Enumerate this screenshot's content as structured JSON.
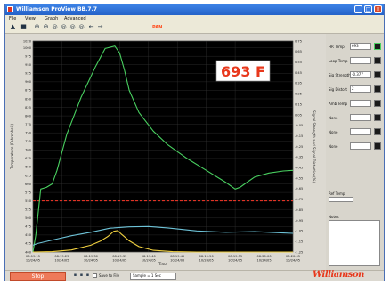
{
  "window": {
    "title": "Williamson ProView BB.7.7",
    "minimize_glyph": "_",
    "maximize_glyph": "□",
    "close_glyph": "×"
  },
  "menu": [
    "File",
    "View",
    "Graph",
    "Advanced"
  ],
  "toolbar": {
    "icons": [
      "print-icon",
      "disk-icon",
      "zoom-in-icon",
      "zoom-out-icon",
      "zoom-box-icon",
      "zoom-x-icon",
      "zoom-y-icon",
      "zoom-fit-icon",
      "arrow-left-icon",
      "arrow-right-icon"
    ],
    "glyphs": [
      "▲",
      "■",
      "⊕",
      "⊖",
      "◎",
      "◎",
      "◎",
      "◎",
      "←",
      "→"
    ],
    "label": "PAN"
  },
  "readout": {
    "value": "693 F",
    "color": "#e8381c"
  },
  "chart_data": {
    "type": "line",
    "left_axis": {
      "label": "Temperature (Fahrenheit)",
      "ylim": [
        400,
        1020
      ],
      "ticks": [
        400,
        425,
        450,
        475,
        500,
        525,
        550,
        575,
        600,
        625,
        650,
        675,
        700,
        725,
        750,
        775,
        800,
        825,
        850,
        875,
        900,
        925,
        950,
        975,
        1000,
        1020
      ]
    },
    "right_axis": {
      "label": "Signal Strength and Signal Distortion(%)",
      "ylim": [
        -1.25,
        0.75
      ],
      "ticks": [
        "-1.25",
        "-1.15",
        "-1.05",
        "-0.95",
        "-0.85",
        "-0.75",
        "-0.65",
        "-0.55",
        "-0.45",
        "-0.35",
        "-0.25",
        "-0.15",
        "-0.05",
        "0.05",
        "0.15",
        "0.25",
        "0.35",
        "0.45",
        "0.55",
        "0.65",
        "0.75"
      ]
    },
    "x_axis": {
      "label": "Time",
      "xlim": [
        0,
        270
      ],
      "ticks": [
        {
          "t": 0,
          "time": "08:19:15",
          "date": "10/24/05"
        },
        {
          "t": 30,
          "time": "08:19:25",
          "date": "10/24/05"
        },
        {
          "t": 60,
          "time": "08:19:30",
          "date": "10/24/05"
        },
        {
          "t": 90,
          "time": "08:19:35",
          "date": "10/24/05"
        },
        {
          "t": 120,
          "time": "08:19:40",
          "date": "10/24/05"
        },
        {
          "t": 150,
          "time": "08:19:45",
          "date": "10/24/05"
        },
        {
          "t": 180,
          "time": "08:19:50",
          "date": "10/24/05"
        },
        {
          "t": 210,
          "time": "08:19:55",
          "date": "10/24/05"
        },
        {
          "t": 240,
          "time": "08:20:00",
          "date": "10/24/05"
        },
        {
          "t": 270,
          "time": "08:20:05",
          "date": "10/24/05"
        }
      ]
    },
    "grid": true,
    "reference_line": {
      "value": 550,
      "color": "#ff3a2a"
    },
    "series": [
      {
        "color": "#49d060",
        "x": [
          0,
          3,
          8,
          14,
          20,
          25,
          35,
          50,
          65,
          75,
          85,
          90,
          95,
          100,
          110,
          125,
          140,
          160,
          180,
          200,
          210,
          215,
          220,
          230,
          245,
          260,
          270
        ],
        "y": [
          400,
          450,
          585,
          590,
          600,
          640,
          745,
          855,
          945,
          998,
          1005,
          985,
          935,
          875,
          810,
          755,
          715,
          675,
          640,
          605,
          585,
          590,
          600,
          620,
          632,
          638,
          640
        ]
      },
      {
        "color": "#6ec3d8",
        "x": [
          0,
          5,
          20,
          40,
          60,
          80,
          100,
          120,
          140,
          170,
          200,
          230,
          260,
          270
        ],
        "y": [
          420,
          425,
          435,
          448,
          458,
          470,
          474,
          475,
          471,
          462,
          458,
          460,
          456,
          455
        ]
      },
      {
        "color": "#f0d040",
        "x": [
          0,
          20,
          40,
          60,
          70,
          78,
          84,
          88,
          92,
          100,
          110,
          125,
          145,
          170,
          200,
          240,
          270
        ],
        "y": [
          400,
          401,
          406,
          420,
          432,
          446,
          461,
          463,
          452,
          433,
          416,
          405,
          401,
          400,
          400,
          400,
          400
        ]
      }
    ]
  },
  "channels": [
    {
      "label": "HR Temp",
      "value": "693"
    },
    {
      "label": "Loop Temp",
      "value": ""
    },
    {
      "label": "Sig Strength",
      "value": "-0.377"
    },
    {
      "label": "Sig Distort",
      "value": "2"
    },
    {
      "label": "Amb Temp",
      "value": ""
    },
    {
      "label": "None",
      "value": ""
    },
    {
      "label": "None",
      "value": ""
    },
    {
      "label": "None",
      "value": ""
    }
  ],
  "right_panel": {
    "ref_label": "Ref Temp",
    "notes_label": "Notes"
  },
  "status": {
    "stop_label": "Stop",
    "save_label": "Save to File",
    "sample_rate": "Sample = 1 Sec",
    "logo": "Williamson"
  }
}
